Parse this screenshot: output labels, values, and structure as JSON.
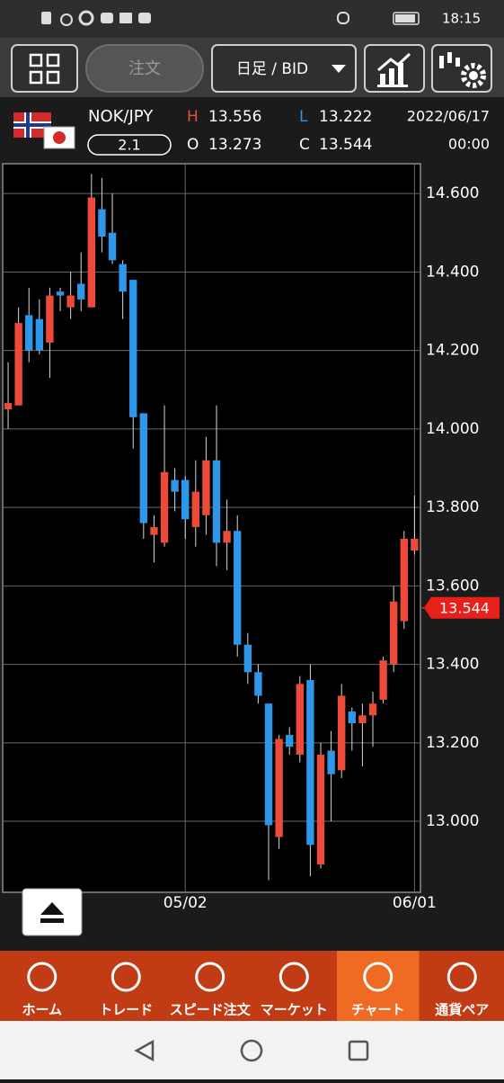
{
  "status_bar": {
    "time": "18:15"
  },
  "toolbar": {
    "order_button": "注文",
    "period_select": "日足 / BID"
  },
  "quote": {
    "symbol": "NOK/JPY",
    "spread": "2.1",
    "high_label": "H",
    "high": "13.556",
    "low_label": "L",
    "low": "13.222",
    "open_label": "O",
    "open": "13.273",
    "close_label": "C",
    "close": "13.544",
    "date": "2022/06/17",
    "time": "00:00"
  },
  "chart_data": {
    "type": "candlestick",
    "open": [
      14.05,
      14.06,
      14.29,
      14.28,
      14.22,
      14.35,
      14.31,
      14.37,
      14.31,
      14.56,
      14.5,
      14.42,
      14.38,
      14.04,
      13.73,
      13.71,
      13.87,
      13.87,
      13.75,
      13.78,
      13.92,
      13.71,
      13.74,
      13.45,
      13.38,
      13.3,
      12.96,
      13.22,
      13.17,
      13.36,
      12.89,
      13.18,
      13.13,
      13.28,
      13.25,
      13.27,
      13.31,
      13.4,
      13.51,
      13.69
    ],
    "high": [
      14.17,
      14.31,
      14.36,
      14.33,
      14.36,
      14.36,
      14.4,
      14.45,
      14.65,
      14.64,
      14.6,
      14.43,
      14.38,
      14.04,
      13.78,
      14.06,
      13.9,
      13.88,
      13.92,
      13.98,
      14.06,
      13.82,
      13.78,
      13.48,
      13.4,
      13.3,
      13.22,
      13.24,
      13.37,
      13.4,
      13.2,
      13.23,
      13.35,
      13.29,
      13.3,
      13.33,
      13.42,
      13.6,
      13.74,
      13.83
    ],
    "low": [
      14.0,
      14.06,
      14.17,
      14.19,
      14.13,
      14.3,
      14.28,
      14.3,
      14.31,
      14.45,
      14.42,
      14.28,
      13.95,
      13.72,
      13.66,
      13.7,
      13.79,
      13.72,
      13.7,
      13.73,
      13.65,
      13.64,
      13.42,
      13.35,
      13.3,
      12.85,
      12.93,
      13.17,
      13.15,
      12.86,
      12.88,
      13.0,
      13.11,
      13.18,
      13.14,
      13.19,
      13.3,
      13.38,
      13.49,
      13.68
    ],
    "close": [
      14.066,
      14.27,
      14.2,
      14.2,
      14.34,
      14.34,
      14.34,
      14.33,
      14.59,
      14.49,
      14.43,
      14.35,
      14.03,
      13.76,
      13.75,
      13.89,
      13.84,
      13.77,
      13.84,
      13.92,
      13.71,
      13.74,
      13.45,
      13.38,
      13.32,
      12.99,
      13.21,
      13.19,
      13.35,
      12.94,
      13.17,
      13.12,
      13.32,
      13.25,
      13.27,
      13.3,
      13.41,
      13.56,
      13.72,
      13.72
    ],
    "up_color": "#ee4a3a",
    "down_color": "#2f97ea",
    "xlim": [
      -0.52,
      39.57
    ],
    "xticks": [
      {
        "value": 17,
        "label": "05/02"
      },
      {
        "value": 39,
        "label": "06/01"
      }
    ],
    "ylim": [
      12.819,
      14.676
    ],
    "yticks": [
      {
        "value": 13.0,
        "label": "13.000"
      },
      {
        "value": 13.2,
        "label": "13.200"
      },
      {
        "value": 13.4,
        "label": "13.400"
      },
      {
        "value": 13.6,
        "label": "13.600"
      },
      {
        "value": 13.8,
        "label": "13.800"
      },
      {
        "value": 14.0,
        "label": "14.000"
      },
      {
        "value": 14.2,
        "label": "14.200"
      },
      {
        "value": 14.4,
        "label": "14.400"
      },
      {
        "value": 14.6,
        "label": "14.600"
      }
    ],
    "grid": true,
    "last_price": 13.544,
    "last_price_color": "#e8201c"
  },
  "nav": {
    "items": [
      "ホーム",
      "トレード",
      "スピード注文",
      "マーケット",
      "チャート",
      "通貨ペア"
    ],
    "active": 4
  }
}
